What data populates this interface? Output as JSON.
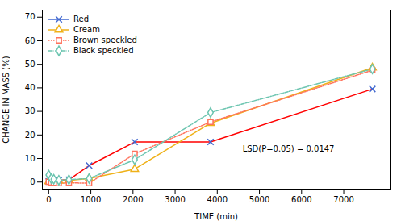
{
  "chart_data": {
    "type": "line",
    "title": "",
    "xlabel": "TIME (min)",
    "ylabel": "CHANGE IN MASS (%)",
    "xlim": [
      -150,
      8100
    ],
    "ylim": [
      -3,
      73
    ],
    "xticks": [
      0,
      1000,
      2000,
      3000,
      4000,
      5000,
      6000,
      7000
    ],
    "yticks": [
      0,
      10,
      20,
      30,
      40,
      50,
      60,
      70
    ],
    "x": [
      0,
      60,
      120,
      240,
      480,
      960,
      2040,
      3840,
      7680
    ],
    "series": [
      {
        "name": "Red",
        "values": [
          0.3,
          0.5,
          0.7,
          0.8,
          1.0,
          7.0,
          17.0,
          17.0,
          39.5
        ],
        "marker": "x",
        "line_style": "solid"
      },
      {
        "name": "Cream",
        "values": [
          0.2,
          0.3,
          0.4,
          0.5,
          0.7,
          1.5,
          5.5,
          25.0,
          48.5
        ],
        "marker": "triangle",
        "line_style": "solid"
      },
      {
        "name": "Brown speckled",
        "values": [
          0.1,
          -0.2,
          -0.3,
          -0.5,
          -0.3,
          -0.5,
          12.0,
          25.5,
          47.5
        ],
        "marker": "square",
        "line_style": "dotted"
      },
      {
        "name": "Black speckled",
        "values": [
          3.0,
          1.5,
          1.2,
          0.8,
          1.0,
          1.5,
          9.5,
          29.5,
          48.0
        ],
        "marker": "diamond",
        "line_style": "dashdot"
      }
    ],
    "legend": "upper left",
    "annotations": [
      {
        "text": "LSD(P=0.05) = 0.0147",
        "x": 4600,
        "y": 14
      }
    ]
  }
}
